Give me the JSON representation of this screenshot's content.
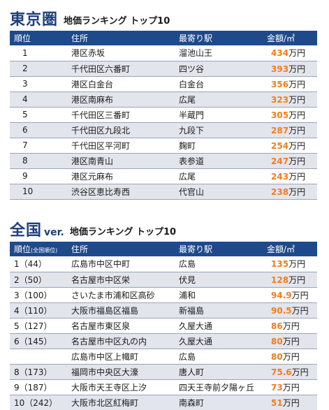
{
  "tokyo": {
    "title": "東京圏",
    "subtitle": "地価ランキング トップ10",
    "headers": {
      "rank": "順位",
      "address": "住所",
      "station": "最寄り駅",
      "price": "金額/㎡"
    },
    "rows": [
      {
        "rank": "1",
        "address": "港区赤坂",
        "station": "溜池山王",
        "price": "434",
        "unit": "万円"
      },
      {
        "rank": "2",
        "address": "千代田区六番町",
        "station": "四ツ谷",
        "price": "393",
        "unit": "万円"
      },
      {
        "rank": "3",
        "address": "港区白金台",
        "station": "白金台",
        "price": "356",
        "unit": "万円"
      },
      {
        "rank": "4",
        "address": "港区南麻布",
        "station": "広尾",
        "price": "323",
        "unit": "万円"
      },
      {
        "rank": "5",
        "address": "千代田区三番町",
        "station": "半蔵門",
        "price": "305",
        "unit": "万円"
      },
      {
        "rank": "6",
        "address": "千代田区九段北",
        "station": "九段下",
        "price": "287",
        "unit": "万円"
      },
      {
        "rank": "7",
        "address": "千代田区平河町",
        "station": "麹町",
        "price": "254",
        "unit": "万円"
      },
      {
        "rank": "8",
        "address": "港区南青山",
        "station": "表参道",
        "price": "247",
        "unit": "万円"
      },
      {
        "rank": "9",
        "address": "港区元麻布",
        "station": "広尾",
        "price": "243",
        "unit": "万円"
      },
      {
        "rank": "10",
        "address": "渋谷区恵比寿西",
        "station": "代官山",
        "price": "238",
        "unit": "万円"
      }
    ]
  },
  "national": {
    "title": "全国",
    "ver": "ver.",
    "subtitle": "地価ランキング トップ10",
    "headers": {
      "rank": "順位",
      "rank_note": "(全国順位)",
      "address": "住所",
      "station": "最寄り駅",
      "price": "金額/㎡"
    },
    "rows": [
      {
        "rank": "1（44）",
        "address": "広島市中区中町",
        "station": "広島",
        "price": "135",
        "unit": "万円"
      },
      {
        "rank": "2（50）",
        "address": "名古屋市中区栄",
        "station": "伏見",
        "price": "128",
        "unit": "万円"
      },
      {
        "rank": "3（100）",
        "address": "さいたま市浦和区高砂",
        "station": "浦和",
        "price": "94.9",
        "unit": "万円"
      },
      {
        "rank": "4（110）",
        "address": "大阪市福島区福島",
        "station": "新福島",
        "price": "90.5",
        "unit": "万円"
      },
      {
        "rank": "5（127）",
        "address": "名古屋市東区泉",
        "station": "久屋大通",
        "price": "86",
        "unit": "万円"
      },
      {
        "rank": "6（145）",
        "address": "名古屋市中区丸の内",
        "station": "久屋大通",
        "price": "80",
        "unit": "万円"
      },
      {
        "rank": "",
        "address": "広島市中区上幟町",
        "station": "広島",
        "price": "80",
        "unit": "万円"
      },
      {
        "rank": "8（173）",
        "address": "福岡市中央区大濠",
        "station": "唐人町",
        "price": "75.6",
        "unit": "万円"
      },
      {
        "rank": "9（187）",
        "address": "大阪市天王寺区上汐",
        "station": "四天王寺前夕陽ヶ丘",
        "price": "73",
        "unit": "万円"
      },
      {
        "rank": "10（242）",
        "address": "大阪市北区紅梅町",
        "station": "南森町",
        "price": "51",
        "unit": "万円"
      }
    ]
  }
}
